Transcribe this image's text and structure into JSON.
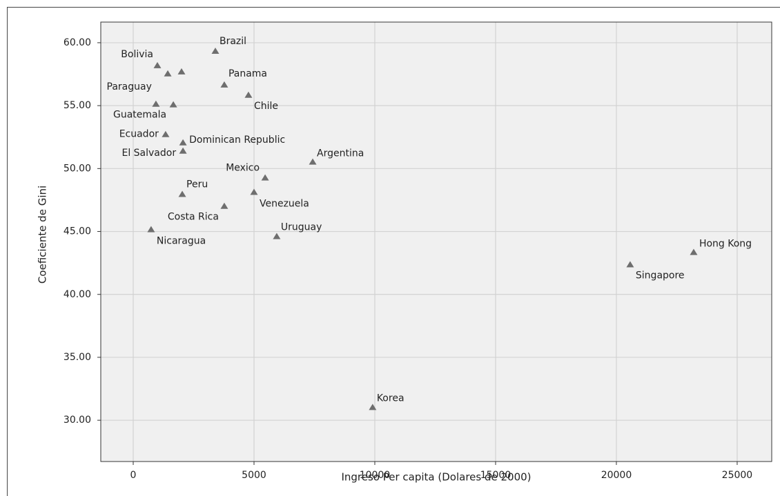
{
  "chart_data": {
    "type": "scatter",
    "x_label": "Ingreso Per capita (Dolares de 2000)",
    "y_label": "Coeficiente de Gini",
    "x": [
      3400,
      1000,
      1430,
      2000,
      3770,
      4770,
      940,
      1660,
      1340,
      2060,
      2060,
      7430,
      5460,
      2030,
      5000,
      3770,
      740,
      5940,
      23200,
      20570,
      9910
    ],
    "values": [
      59.34,
      58.19,
      57.54,
      57.7,
      56.66,
      55.84,
      55.13,
      55.08,
      52.72,
      52.06,
      51.4,
      50.53,
      49.27,
      47.96,
      48.13,
      47.02,
      45.16,
      44.61,
      43.35,
      42.37,
      31.03
    ],
    "labels": [
      "Brazil",
      "Bolivia",
      null,
      null,
      "Panama",
      "Chile",
      "Paraguay",
      "Guatemala",
      "Ecuador",
      "Dominican Republic",
      "El Salvador",
      "Argentina",
      "Mexico",
      "Peru",
      "Venezuela",
      "Costa Rica",
      "Nicaragua",
      "Uruguay",
      "Hong Kong",
      "Singapore",
      "Korea"
    ],
    "color": "#6e6e6e",
    "xlim": [
      -1343,
      26430
    ],
    "ylim": [
      26.72,
      61.64
    ],
    "xticks": [
      0,
      5000,
      10000,
      15000,
      20000,
      25000
    ],
    "yticks": [
      {
        "value": 30,
        "label": "30.00"
      },
      {
        "value": 35,
        "label": "35.00"
      },
      {
        "value": 40,
        "label": "40.00"
      },
      {
        "value": 45,
        "label": "45.00"
      },
      {
        "value": 50,
        "label": "50.00"
      },
      {
        "value": 55,
        "label": "55.00"
      },
      {
        "value": 60,
        "label": "60.00"
      }
    ],
    "grid": true
  }
}
